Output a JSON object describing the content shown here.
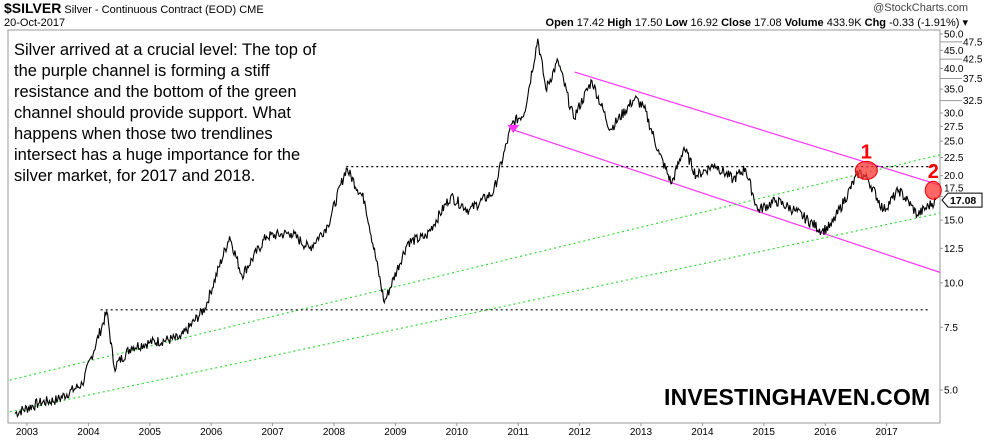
{
  "header": {
    "symbol": "$SILVER",
    "name": "Silver - Continuous Contract (EOD)",
    "exchange": "CME",
    "date": "20-Oct-2017",
    "copyright": "@StockCharts.com",
    "open_label": "Open",
    "open": "17.42",
    "high_label": "High",
    "high": "17.50",
    "low_label": "Low",
    "low": "16.92",
    "close_label": "Close",
    "close": "17.08",
    "volume_label": "Volume",
    "volume": "433.9K",
    "chg_label": "Chg",
    "chg": "-0.33 (-1.91%)",
    "chg_arrow": "▾"
  },
  "annotation": "Silver arrived at a crucial level: The top of the purple channel is forming a stiff resistance and the bottom of the green channel should provide support. What happens when those two trendlines intersect has a huge importance for the silver market, for 2017 and 2018.",
  "watermark": "INVESTINGHAVEN.COM",
  "colors": {
    "price": "#000000",
    "channel": "#ff33ff",
    "support": "#33dd33",
    "marker": "#ff3333"
  },
  "chart_data": {
    "type": "line",
    "scale": "log",
    "title": "$SILVER Silver - Continuous Contract (EOD)",
    "xlabel": "",
    "ylabel": "",
    "xlim": [
      2002.75,
      2017.9
    ],
    "ylim": [
      4.3,
      50.5
    ],
    "x_ticks": [
      "2003",
      "2004",
      "2005",
      "2006",
      "2007",
      "2008",
      "2009",
      "2010",
      "2011",
      "2012",
      "2013",
      "2014",
      "2015",
      "2016",
      "2017"
    ],
    "y_ticks": [
      "5.0",
      "7.5",
      "10.0",
      "12.5",
      "15.0",
      "17.5",
      "20.0",
      "22.5",
      "25.0",
      "27.5",
      "30.0",
      "32.5",
      "35.0",
      "37.5",
      "40.0",
      "42.5",
      "45.0",
      "47.5",
      "50.0"
    ],
    "last_value": "17.08",
    "series": [
      {
        "name": "Silver close",
        "points": [
          [
            2002.8,
            4.3
          ],
          [
            2003.2,
            4.6
          ],
          [
            2003.5,
            4.7
          ],
          [
            2003.9,
            5.2
          ],
          [
            2004.3,
            8.3
          ],
          [
            2004.42,
            5.8
          ],
          [
            2004.7,
            6.6
          ],
          [
            2005.0,
            6.8
          ],
          [
            2005.5,
            7.0
          ],
          [
            2005.9,
            8.5
          ],
          [
            2006.3,
            13.5
          ],
          [
            2006.5,
            10.5
          ],
          [
            2006.9,
            13.5
          ],
          [
            2007.3,
            13.8
          ],
          [
            2007.6,
            12.5
          ],
          [
            2007.9,
            14.5
          ],
          [
            2008.2,
            21.0
          ],
          [
            2008.5,
            17
          ],
          [
            2008.82,
            8.8
          ],
          [
            2009.2,
            13
          ],
          [
            2009.5,
            13.5
          ],
          [
            2009.9,
            17.5
          ],
          [
            2010.2,
            16
          ],
          [
            2010.6,
            18
          ],
          [
            2010.9,
            28
          ],
          [
            2011.1,
            30
          ],
          [
            2011.32,
            48.5
          ],
          [
            2011.45,
            35
          ],
          [
            2011.65,
            42
          ],
          [
            2011.9,
            29
          ],
          [
            2012.2,
            37
          ],
          [
            2012.5,
            27
          ],
          [
            2012.9,
            33
          ],
          [
            2013.05,
            31
          ],
          [
            2013.3,
            23
          ],
          [
            2013.5,
            19
          ],
          [
            2013.7,
            24
          ],
          [
            2013.9,
            20
          ],
          [
            2014.2,
            21.5
          ],
          [
            2014.5,
            19.5
          ],
          [
            2014.7,
            21
          ],
          [
            2014.9,
            16
          ],
          [
            2015.2,
            17
          ],
          [
            2015.5,
            16
          ],
          [
            2015.95,
            14
          ],
          [
            2016.1,
            14.5
          ],
          [
            2016.55,
            20.5
          ],
          [
            2016.7,
            19.5
          ],
          [
            2016.95,
            16
          ],
          [
            2017.2,
            18.2
          ],
          [
            2017.4,
            16.5
          ],
          [
            2017.5,
            15.5
          ],
          [
            2017.8,
            17.08
          ]
        ]
      }
    ],
    "trendlines": [
      {
        "name": "purple-channel-top",
        "color": "#ff33ff",
        "style": "solid",
        "from": [
          2011.92,
          39.1
        ],
        "to": [
          2017.87,
          18.8
        ]
      },
      {
        "name": "purple-channel-bottom",
        "color": "#ff33ff",
        "style": "solid",
        "from": [
          2010.92,
          26.9
        ],
        "to": [
          2017.87,
          10.7
        ]
      },
      {
        "name": "green-channel-top",
        "color": "#33dd33",
        "style": "dotted",
        "from": [
          2002.72,
          5.33
        ],
        "to": [
          2017.87,
          22.9
        ]
      },
      {
        "name": "green-channel-bottom",
        "color": "#33dd33",
        "style": "dotted",
        "from": [
          2002.72,
          4.34
        ],
        "to": [
          2017.87,
          15.7
        ]
      },
      {
        "name": "resistance-21",
        "color": "#000000",
        "style": "dotted",
        "from": [
          2008.2,
          21.2
        ],
        "to": [
          2017.8,
          21.2
        ]
      },
      {
        "name": "support-8-4",
        "color": "#000000",
        "style": "dotted",
        "from": [
          2004.2,
          8.4
        ],
        "to": [
          2017.7,
          8.4
        ]
      }
    ],
    "markers": [
      {
        "label": "1",
        "x": 2016.67,
        "y": 20.7
      },
      {
        "label": "2",
        "x": 2017.76,
        "y": 18.2
      }
    ]
  }
}
